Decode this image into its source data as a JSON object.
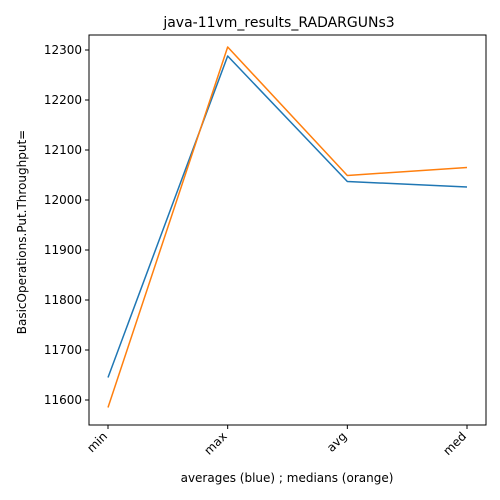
{
  "chart_data": {
    "type": "line",
    "title": "java-11vm_results_RADARGUNs3",
    "xlabel": "averages (blue) ; medians (orange)",
    "ylabel": "BasicOperations.Put.Throughput=",
    "categories": [
      "min",
      "max",
      "avg",
      "med"
    ],
    "ylim": [
      11550,
      12330
    ],
    "yticks": [
      11600,
      11700,
      11800,
      11900,
      12000,
      12100,
      12200,
      12300
    ],
    "grid": false,
    "series": [
      {
        "name": "averages",
        "color": "#1f77b4",
        "values": [
          11645,
          12288,
          12037,
          12026
        ]
      },
      {
        "name": "medians",
        "color": "#ff7f0e",
        "values": [
          11585,
          12306,
          12049,
          12065
        ]
      }
    ]
  }
}
